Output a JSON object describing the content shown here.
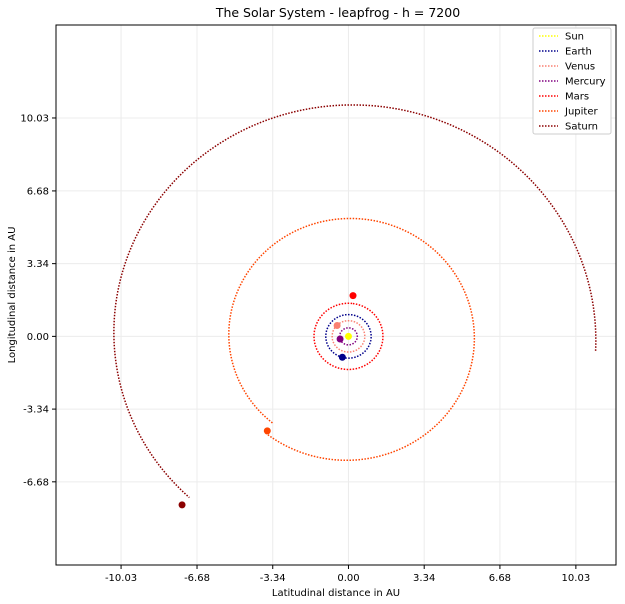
{
  "chart_data": {
    "type": "line",
    "title": "The Solar System - leapfrog - h = 7200",
    "xlabel": "Latitudinal distance in AU",
    "ylabel": "Longitudinal distance in AU",
    "xlim": [
      -12.9,
      11.8
    ],
    "ylim": [
      -10.5,
      14.3
    ],
    "xticks": [
      -10.03,
      -6.68,
      -3.34,
      0.0,
      3.34,
      6.68,
      10.03
    ],
    "yticks": [
      -6.68,
      -3.34,
      0.0,
      3.34,
      6.68,
      10.03
    ],
    "xtick_labels": [
      "-10.03",
      "-6.68",
      "-3.34",
      "0.00",
      "3.34",
      "6.68",
      "10.03"
    ],
    "ytick_labels": [
      "-6.68",
      "-3.34",
      "0.00",
      "3.34",
      "6.68",
      "10.03"
    ],
    "grid": true,
    "legend_position": "top-right",
    "line_style": "dotted",
    "series": [
      {
        "name": "Sun",
        "color": "#ffff00",
        "orbit_radius": [
          0.0,
          0.0
        ],
        "end_position": [
          0.0,
          0.0
        ],
        "sweep_degrees": 0
      },
      {
        "name": "Earth",
        "color": "#00008b",
        "orbit_radius": [
          1.0,
          1.0
        ],
        "end_position": [
          -0.27,
          -0.96
        ],
        "sweep_degrees": 360
      },
      {
        "name": "Venus",
        "color": "#fa8072",
        "orbit_radius": [
          0.72,
          0.72
        ],
        "end_position": [
          -0.5,
          0.5
        ],
        "sweep_degrees": 360
      },
      {
        "name": "Mercury",
        "color": "#800080",
        "orbit_radius": [
          0.39,
          0.39
        ],
        "end_position": [
          -0.37,
          -0.12
        ],
        "sweep_degrees": 360
      },
      {
        "name": "Mars",
        "color": "#ff0000",
        "orbit_radius": [
          1.52,
          1.52
        ],
        "end_position": [
          0.2,
          1.87
        ],
        "sweep_degrees": 360
      },
      {
        "name": "Jupiter",
        "color": "#ff4500",
        "orbit_radius": [
          5.2,
          5.75
        ],
        "end_position": [
          -3.58,
          -4.34
        ],
        "sweep_degrees": 360
      },
      {
        "name": "Saturn",
        "color": "#8b0000",
        "orbit_radius": [
          10.2,
          10.92
        ],
        "end_position": [
          -7.34,
          -7.74
        ],
        "sweep_degrees": 230
      }
    ]
  }
}
